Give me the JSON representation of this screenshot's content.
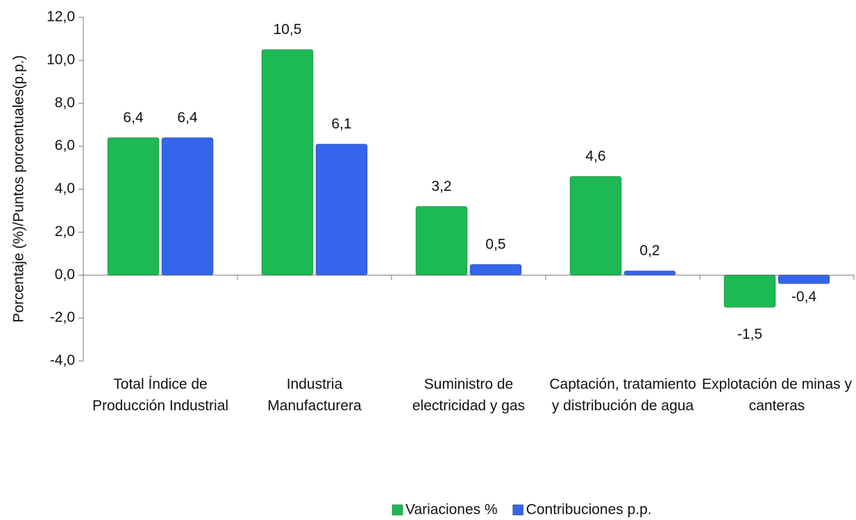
{
  "chart_data": {
    "type": "bar",
    "y_label": "Porcentaje (%)/Puntos porcentuales(p.p.)",
    "categories": [
      "Total Índice de Producción Industrial",
      "Industria Manufacturera",
      "Suministro de electricidad y gas",
      "Captación, tratamiento y distribución de agua",
      "Explotación de minas y canteras"
    ],
    "series": [
      {
        "name": "Variaciones %",
        "color": "#1db954",
        "values": [
          6.4,
          10.5,
          3.2,
          4.6,
          -1.5
        ],
        "value_labels": [
          "6,4",
          "10,5",
          "3,2",
          "4,6",
          "-1,5"
        ]
      },
      {
        "name": "Contribuciones p.p.",
        "color": "#3565ea",
        "values": [
          6.4,
          6.1,
          0.5,
          0.2,
          -0.4
        ],
        "value_labels": [
          "6,4",
          "6,1",
          "0,5",
          "0,2",
          "-0,4"
        ]
      }
    ],
    "ylim": [
      -4,
      12
    ],
    "yticks": [
      {
        "value": -4,
        "label": "-4,0"
      },
      {
        "value": -2,
        "label": "-2,0"
      },
      {
        "value": 0,
        "label": "0,0"
      },
      {
        "value": 2,
        "label": "2,0"
      },
      {
        "value": 4,
        "label": "4,0"
      },
      {
        "value": 6,
        "label": "6,0"
      },
      {
        "value": 8,
        "label": "8,0"
      },
      {
        "value": 10,
        "label": "10,0"
      },
      {
        "value": 12,
        "label": "12,0"
      }
    ],
    "legend": "bottom"
  }
}
